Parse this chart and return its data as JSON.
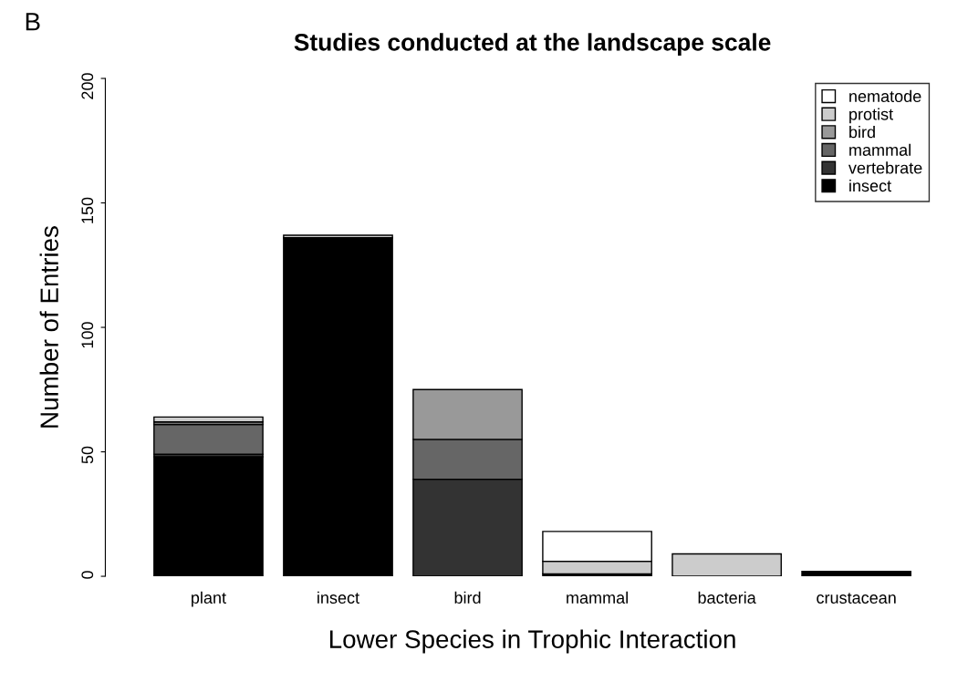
{
  "chart_data": {
    "type": "bar",
    "title": "Studies conducted at the landscape scale",
    "xlabel": "Lower Species in Trophic Interaction",
    "ylabel": "Number of Entries",
    "annotations": [
      "B"
    ],
    "categories": [
      "plant",
      "insect",
      "bird",
      "mammal",
      "bacteria",
      "crustacean"
    ],
    "stacked": true,
    "legend": "top right",
    "grid": false,
    "ylim": [
      0,
      200
    ],
    "yticks": [
      0,
      50,
      100,
      150,
      200
    ],
    "series": [
      {
        "name": "insect",
        "color": "#000000",
        "values": [
          48,
          136,
          0,
          1,
          0,
          2
        ]
      },
      {
        "name": "vertebrate",
        "color": "#333333",
        "values": [
          1,
          0,
          39,
          0,
          0,
          0
        ]
      },
      {
        "name": "mammal",
        "color": "#666666",
        "values": [
          12,
          0,
          16,
          0,
          0,
          0
        ]
      },
      {
        "name": "bird",
        "color": "#999999",
        "values": [
          1,
          0,
          20,
          0,
          0,
          0
        ]
      },
      {
        "name": "protist",
        "color": "#cccccc",
        "values": [
          2,
          1,
          0,
          5,
          9,
          0
        ]
      },
      {
        "name": "nematode",
        "color": "#ffffff",
        "values": [
          0,
          0,
          0,
          12,
          0,
          0
        ]
      }
    ]
  }
}
